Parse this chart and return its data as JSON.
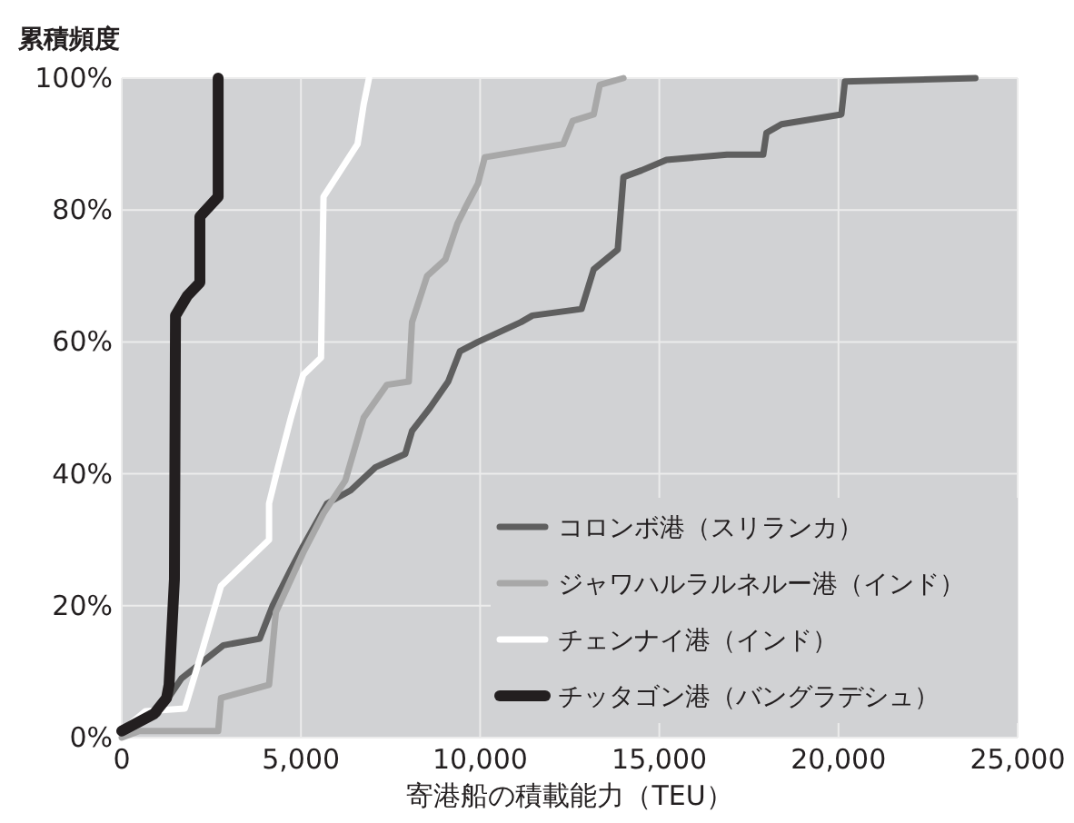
{
  "chart_data": {
    "type": "line",
    "ylabel": "累積頻度",
    "xlabel": "寄港船の積載能力（TEU）",
    "xlim": [
      0,
      25000
    ],
    "ylim": [
      0,
      100
    ],
    "xticks": [
      0,
      {
        "value": 5000,
        "label": "5,000"
      },
      {
        "value": 10000,
        "label": "10,000"
      },
      {
        "value": 15000,
        "label": "15,000"
      },
      {
        "value": 20000,
        "label": "20,000"
      },
      {
        "value": 25000,
        "label": "25,000"
      }
    ],
    "yticks": [
      {
        "value": 0,
        "label": "0%"
      },
      {
        "value": 20,
        "label": "20%"
      },
      {
        "value": 40,
        "label": "40%"
      },
      {
        "value": 60,
        "label": "60%"
      },
      {
        "value": 80,
        "label": "80%"
      },
      {
        "value": 100,
        "label": "100%"
      }
    ],
    "grid": true,
    "legend": "bottom right",
    "marker": "none",
    "line_style": "solid",
    "series": [
      {
        "name": "コロンボ港（スリランカ）",
        "color": "#5f5f5f",
        "x": [
          0,
          1000,
          1670,
          2840,
          3850,
          4210,
          4720,
          5060,
          5730,
          6390,
          7080,
          7910,
          8100,
          8600,
          9110,
          9440,
          9940,
          11140,
          11460,
          12830,
          13170,
          13840,
          14000,
          14500,
          15200,
          16890,
          17900,
          17990,
          18410,
          20080,
          20180,
          23820
        ],
        "values": [
          1,
          3.6,
          9,
          14,
          15,
          20,
          25.5,
          29,
          35.5,
          37.5,
          41,
          43,
          46.5,
          50,
          54,
          58.6,
          60,
          63,
          64,
          65,
          71,
          74,
          85,
          86,
          87.6,
          88.4,
          88.4,
          91.7,
          93,
          94.5,
          99.5,
          100
        ]
      },
      {
        "name": "ジャワハルラルネルー港（インド）",
        "color": "#a8a8a8",
        "x": [
          0,
          490,
          2690,
          2770,
          4110,
          4300,
          5060,
          5630,
          6240,
          6750,
          7400,
          8010,
          8100,
          8520,
          9030,
          9370,
          9620,
          9940,
          10130,
          12320,
          12580,
          13170,
          13340,
          14000
        ],
        "values": [
          0,
          1,
          1,
          6,
          8,
          19,
          28,
          34,
          39,
          48.5,
          53.5,
          54,
          63,
          70,
          72.5,
          78,
          80.7,
          84,
          88,
          90,
          93.5,
          94.5,
          99,
          100
        ]
      },
      {
        "name": "チェンナイ港（インド）",
        "color": "#ffffff",
        "x": [
          0,
          660,
          1760,
          2180,
          2770,
          4110,
          4110,
          4360,
          4720,
          5060,
          5560,
          5630,
          6580,
          6750,
          6900
        ],
        "values": [
          1,
          4,
          4.4,
          12,
          23,
          30,
          35.5,
          41,
          48.5,
          55,
          57.6,
          82,
          90,
          96,
          100
        ]
      },
      {
        "name": "チッタゴン港（バングラデシュ）",
        "color": "#231f20",
        "x": [
          0,
          900,
          1250,
          1320,
          1470,
          1500,
          1830,
          2180,
          2180,
          2690,
          2690
        ],
        "values": [
          1,
          3.6,
          6,
          8,
          24,
          64,
          67,
          69,
          79,
          82,
          100
        ]
      }
    ]
  }
}
